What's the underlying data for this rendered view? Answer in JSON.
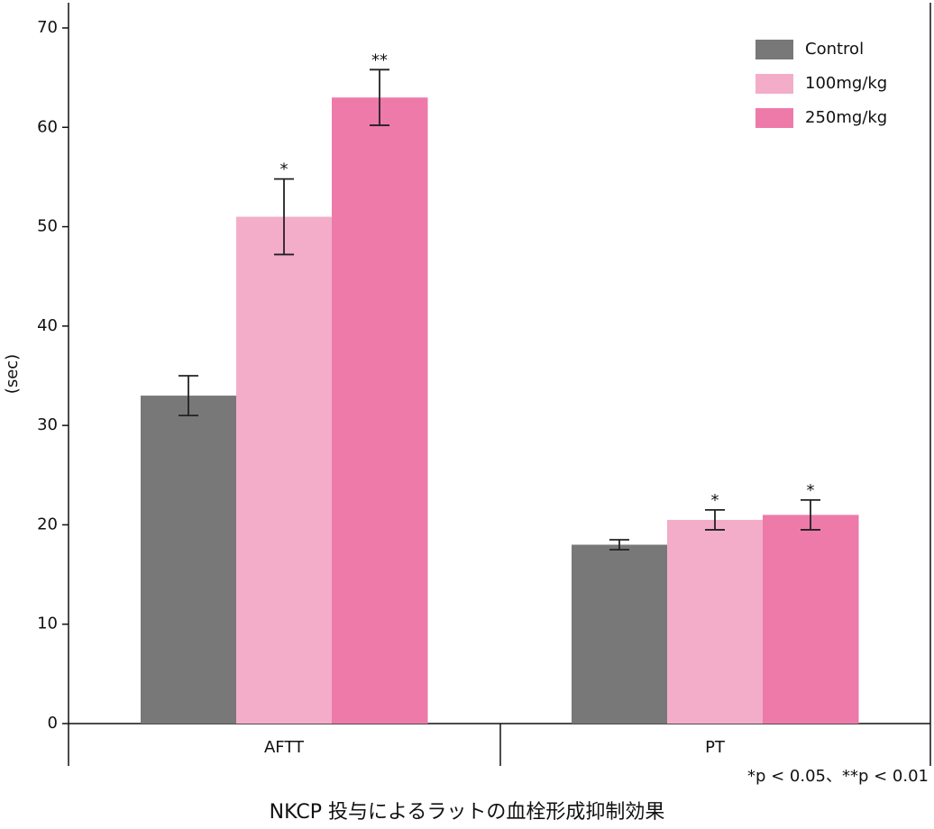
{
  "chart_data": {
    "type": "bar",
    "y_label": "(sec)",
    "caption": "NKCP 投与によるラットの血栓形成抑制効果",
    "footnote": "*p < 0.05、**p < 0.01",
    "categories": [
      "AFTT",
      "PT"
    ],
    "series": [
      {
        "name": "Control",
        "color": "#787878",
        "values": [
          33,
          18
        ],
        "errors": [
          2,
          0.5
        ],
        "annotations": [
          null,
          null
        ]
      },
      {
        "name": "100mg/kg",
        "color": "#f3adc9",
        "values": [
          51,
          20.5
        ],
        "errors": [
          3.8,
          1
        ],
        "annotations": [
          "*",
          "*"
        ]
      },
      {
        "name": "250mg/kg",
        "color": "#ee7aaa",
        "values": [
          63,
          21
        ],
        "errors": [
          2.8,
          1.5
        ],
        "annotations": [
          "**",
          "*"
        ]
      }
    ],
    "ylim": [
      0,
      70
    ],
    "yticks": [
      0,
      10,
      20,
      30,
      40,
      50,
      60,
      70
    ],
    "legend": "upper right"
  }
}
